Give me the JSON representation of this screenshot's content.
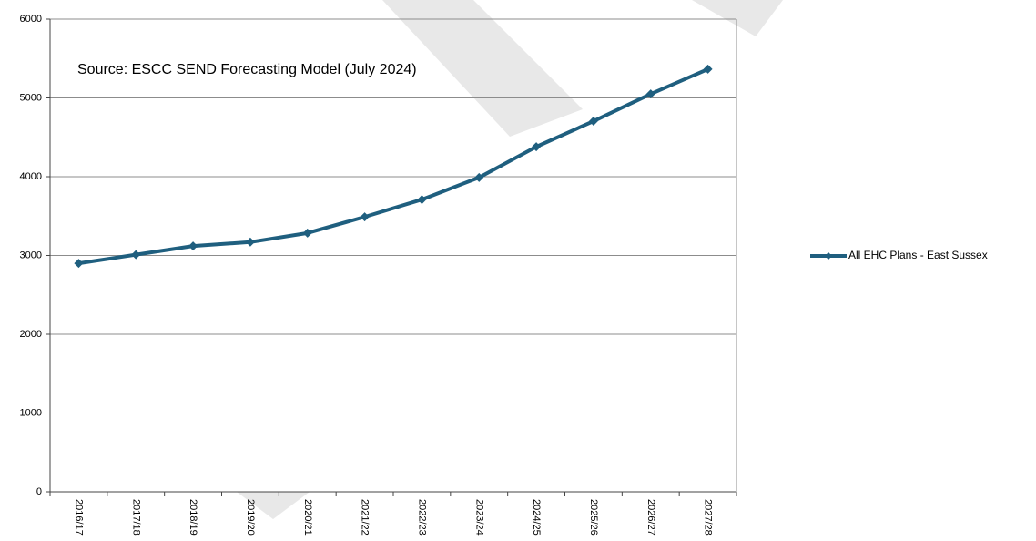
{
  "chart_data": {
    "type": "line",
    "annotation": "Source: ESCC SEND Forecasting Model (July 2024)",
    "categories": [
      "2016/17",
      "2017/18",
      "2018/19",
      "2019/20",
      "2020/21",
      "2021/22",
      "2022/23",
      "2023/24",
      "2024/25",
      "2025/26",
      "2026/27",
      "2027/28"
    ],
    "series": [
      {
        "name": "All EHC Plans - East Sussex",
        "color": "#1f5f7f",
        "values": [
          2900,
          3010,
          3120,
          3170,
          3285,
          3490,
          3710,
          3990,
          4380,
          4705,
          5050,
          5365
        ]
      }
    ],
    "ylim": [
      0,
      6000
    ],
    "yticks": [
      0,
      1000,
      2000,
      3000,
      4000,
      5000,
      6000
    ],
    "grid": true,
    "legend": "right"
  }
}
